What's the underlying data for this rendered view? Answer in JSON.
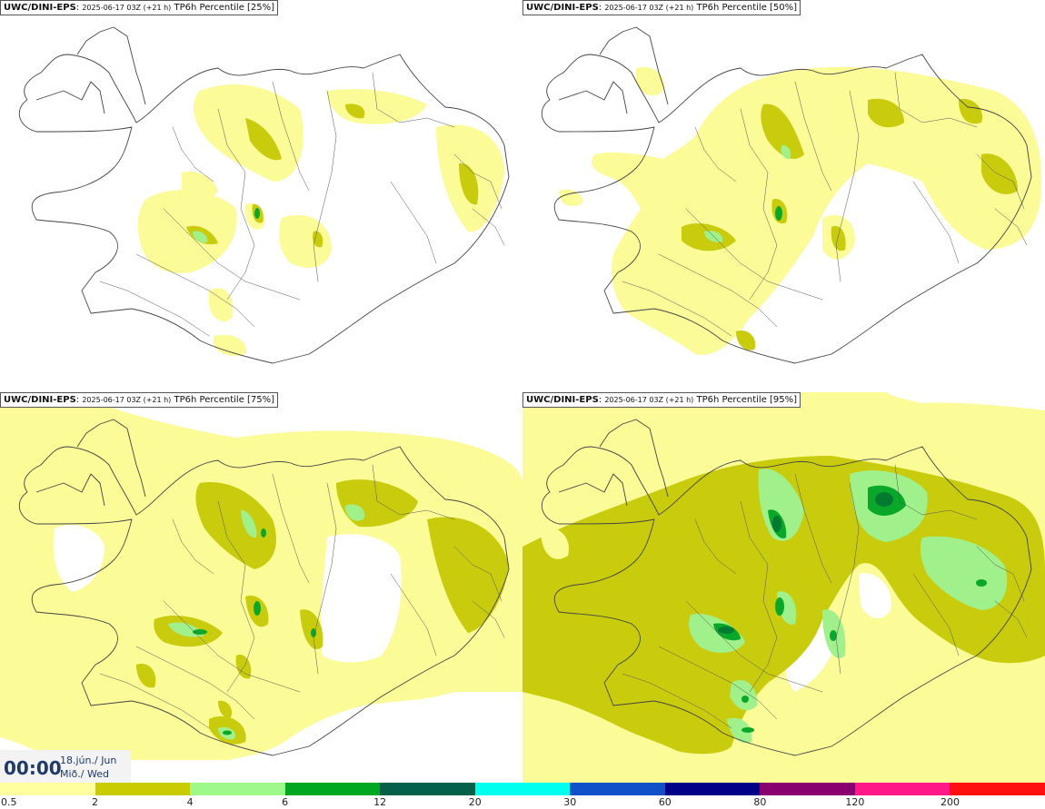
{
  "panels": [
    {
      "source": "UWC/DINI-EPS",
      "run": "2025-06-17 03Z (+21 h)",
      "field": "TP6h Percentile [25%]"
    },
    {
      "source": "UWC/DINI-EPS",
      "run": "2025-06-17 03Z (+21 h)",
      "field": "TP6h Percentile [50%]"
    },
    {
      "source": "UWC/DINI-EPS",
      "run": "2025-06-17 03Z (+21 h)",
      "field": "TP6h Percentile [75%]"
    },
    {
      "source": "UWC/DINI-EPS",
      "run": "2025-06-17 03Z (+21 h)",
      "field": "TP6h Percentile [95%]"
    }
  ],
  "timestamp": {
    "time": "00:00",
    "date_line1": "18.jún./ Jun",
    "date_line2": "Mið./ Wed"
  },
  "legend": {
    "labels": [
      "0.5",
      "2",
      "4",
      "6",
      "12",
      "20",
      "30",
      "60",
      "80",
      "120",
      "200"
    ],
    "colors": [
      "#ffff9f",
      "#c8cc00",
      "#9ff88a",
      "#00a822",
      "#05604a",
      "#00ffee",
      "#1050c8",
      "#000088",
      "#880070",
      "#ff1888",
      "#ff1010"
    ]
  },
  "map_colors": {
    "light": "#fbfb98",
    "mid": "#c8cc0c",
    "pale_green": "#a0f08c",
    "green": "#0aa82a",
    "dark_green": "#037a30"
  }
}
